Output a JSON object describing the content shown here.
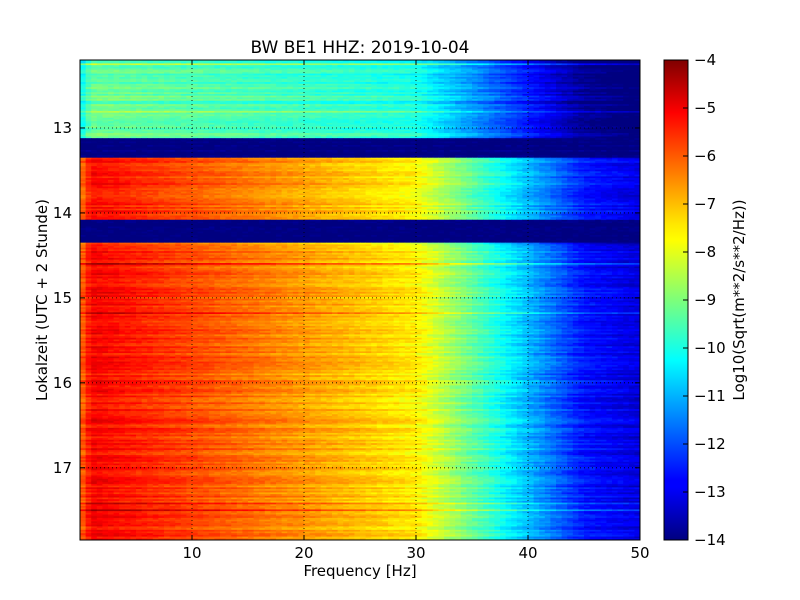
{
  "chart_data": {
    "type": "heatmap",
    "title": "BW BE1 HHZ: 2019-10-04",
    "xlabel": "Frequency [Hz]",
    "ylabel": "Lokalzeit (UTC + 2 Stunde)",
    "xlim": [
      0,
      50
    ],
    "ylim": [
      12.2,
      17.85
    ],
    "y_axis_inverted": true,
    "x_ticks": [
      10,
      20,
      30,
      40,
      50
    ],
    "y_ticks": [
      13,
      14,
      15,
      16,
      17
    ],
    "grid": true,
    "colormap": "jet",
    "colorbar": {
      "label": "Log10(Sqrt(m**2/s**2/Hz))",
      "vmin": -14,
      "vmax": -4,
      "ticks": [
        -4,
        -5,
        -6,
        -7,
        -8,
        -9,
        -10,
        -11,
        -12,
        -13,
        -14
      ]
    },
    "z_units": "log10 amplitude",
    "time_segments": [
      {
        "t_start": 12.2,
        "t_end": 13.12,
        "level_at_1hz": -9.2,
        "level_at_30hz": -10.0,
        "level_at_45hz": -13.8
      },
      {
        "t_start": 13.12,
        "t_end": 13.35,
        "level_at_1hz": -14.0,
        "level_at_30hz": -14.0,
        "level_at_45hz": -14.0
      },
      {
        "t_start": 13.35,
        "t_end": 14.08,
        "level_at_1hz": -5.3,
        "level_at_30hz": -7.7,
        "level_at_45hz": -12.5
      },
      {
        "t_start": 14.08,
        "t_end": 14.35,
        "level_at_1hz": -14.0,
        "level_at_30hz": -14.0,
        "level_at_45hz": -14.0
      },
      {
        "t_start": 14.35,
        "t_end": 17.85,
        "level_at_1hz": -5.2,
        "level_at_30hz": -7.6,
        "level_at_45hz": -12.6
      }
    ]
  }
}
